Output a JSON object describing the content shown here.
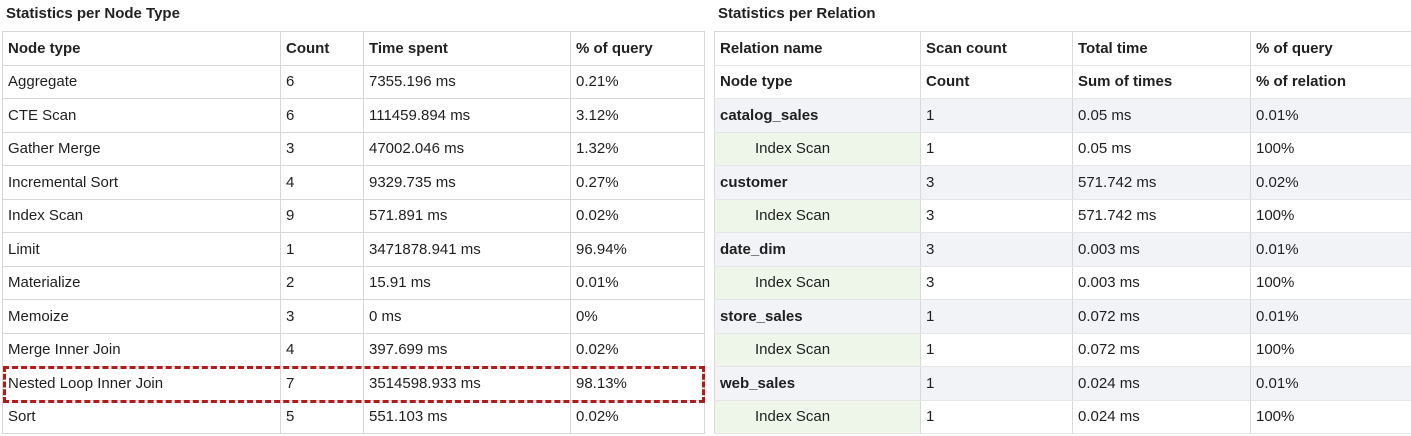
{
  "node_stats": {
    "title": "Statistics per Node Type",
    "headers": [
      "Node type",
      "Count",
      "Time spent",
      "% of query"
    ],
    "rows": [
      {
        "node_type": "Aggregate",
        "count": "6",
        "time": "7355.196 ms",
        "pct": "0.21%"
      },
      {
        "node_type": "CTE Scan",
        "count": "6",
        "time": "111459.894 ms",
        "pct": "3.12%"
      },
      {
        "node_type": "Gather Merge",
        "count": "3",
        "time": "47002.046 ms",
        "pct": "1.32%"
      },
      {
        "node_type": "Incremental Sort",
        "count": "4",
        "time": "9329.735 ms",
        "pct": "0.27%"
      },
      {
        "node_type": "Index Scan",
        "count": "9",
        "time": "571.891 ms",
        "pct": "0.02%"
      },
      {
        "node_type": "Limit",
        "count": "1",
        "time": "3471878.941 ms",
        "pct": "96.94%"
      },
      {
        "node_type": "Materialize",
        "count": "2",
        "time": "15.91 ms",
        "pct": "0.01%"
      },
      {
        "node_type": "Memoize",
        "count": "3",
        "time": "0 ms",
        "pct": "0%"
      },
      {
        "node_type": "Merge Inner Join",
        "count": "4",
        "time": "397.699 ms",
        "pct": "0.02%"
      },
      {
        "node_type": "Nested Loop Inner Join",
        "count": "7",
        "time": "3514598.933 ms",
        "pct": "98.13%"
      },
      {
        "node_type": "Sort",
        "count": "5",
        "time": "551.103 ms",
        "pct": "0.02%"
      }
    ]
  },
  "relation_stats": {
    "title": "Statistics per Relation",
    "headers": [
      "Relation name",
      "Scan count",
      "Total time",
      "% of query"
    ],
    "subheaders": [
      "Node type",
      "Count",
      "Sum of times",
      "% of relation"
    ],
    "relations": [
      {
        "name": "catalog_sales",
        "count": "1",
        "time": "0.05 ms",
        "pct": "0.01%",
        "sub": {
          "node_type": "Index Scan",
          "count": "1",
          "time": "0.05 ms",
          "pct": "100%"
        }
      },
      {
        "name": "customer",
        "count": "3",
        "time": "571.742 ms",
        "pct": "0.02%",
        "sub": {
          "node_type": "Index Scan",
          "count": "3",
          "time": "571.742 ms",
          "pct": "100%"
        }
      },
      {
        "name": "date_dim",
        "count": "3",
        "time": "0.003 ms",
        "pct": "0.01%",
        "sub": {
          "node_type": "Index Scan",
          "count": "3",
          "time": "0.003 ms",
          "pct": "100%"
        }
      },
      {
        "name": "store_sales",
        "count": "1",
        "time": "0.072 ms",
        "pct": "0.01%",
        "sub": {
          "node_type": "Index Scan",
          "count": "1",
          "time": "0.072 ms",
          "pct": "100%"
        }
      },
      {
        "name": "web_sales",
        "count": "1",
        "time": "0.024 ms",
        "pct": "0.01%",
        "sub": {
          "node_type": "Index Scan",
          "count": "1",
          "time": "0.024 ms",
          "pct": "100%"
        }
      }
    ]
  },
  "highlight_color": "#b51a1a"
}
